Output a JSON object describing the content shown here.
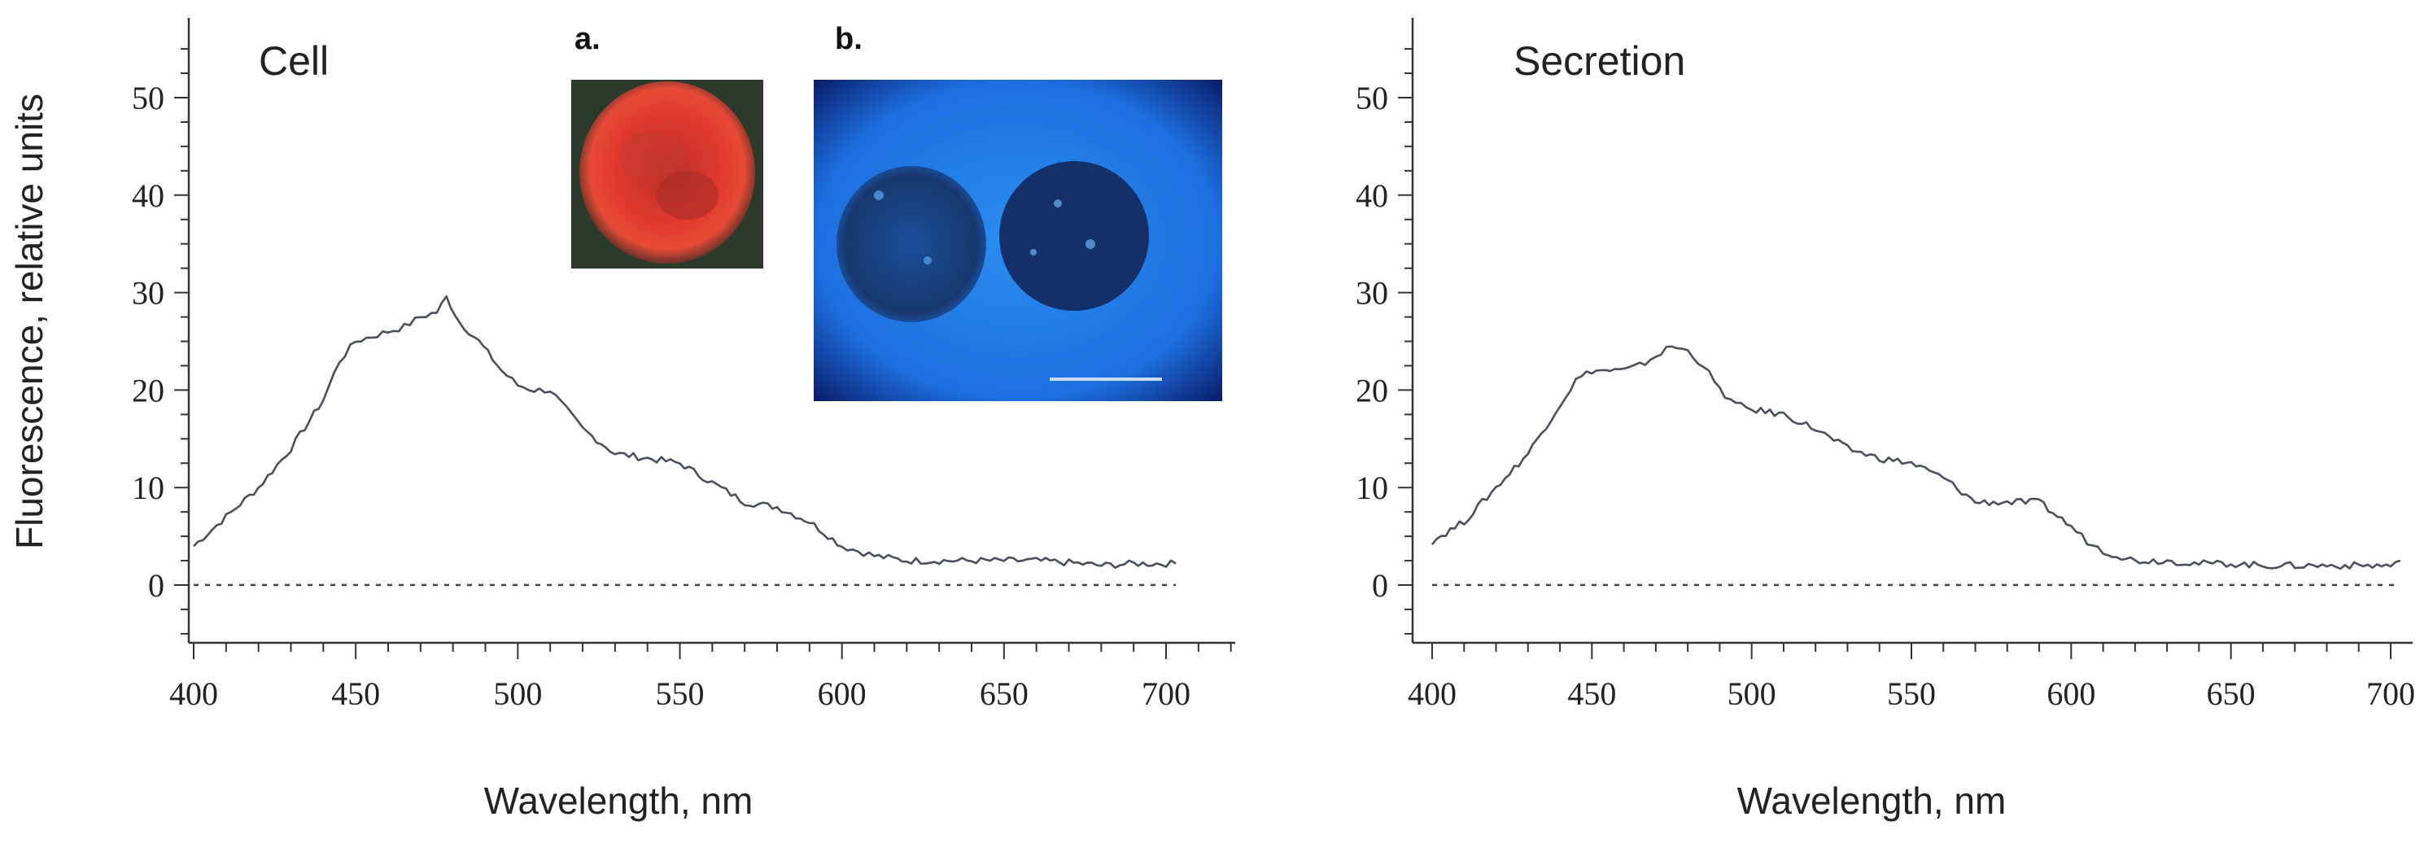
{
  "figure": {
    "ylabel": "Fluorescence, relative units",
    "inset_labels": {
      "a": "a.",
      "b": "b."
    }
  },
  "colors": {
    "line": "#4a4f5c",
    "inset_a": "#e43a2e",
    "inset_b": "#1e74e0"
  },
  "chart_data": [
    {
      "type": "line",
      "title": "Cell",
      "xlabel": "Wavelength, nm",
      "ylabel": "Fluorescence, relative units",
      "xlim": [
        397,
        720
      ],
      "ylim": [
        -6,
        58
      ],
      "xticks": [
        400,
        450,
        500,
        550,
        600,
        650,
        700
      ],
      "yticks": [
        0,
        10,
        20,
        30,
        40,
        50
      ],
      "zero_line": true,
      "series": [
        {
          "x": [
            400,
            410,
            420,
            430,
            440,
            445,
            450,
            455,
            460,
            465,
            470,
            475,
            478,
            482,
            488,
            495,
            500,
            505,
            510,
            515,
            520,
            530,
            540,
            550,
            560,
            570,
            580,
            590,
            600,
            605,
            610,
            620,
            630,
            640,
            650,
            660,
            670,
            680,
            690,
            700,
            703
          ],
          "y": [
            4,
            7,
            10,
            14,
            19,
            23,
            25,
            25.5,
            26,
            26.5,
            27.5,
            28,
            29.5,
            27,
            25,
            22,
            20.5,
            20,
            20,
            18,
            16,
            13.5,
            13,
            12.5,
            10.5,
            8.5,
            8,
            6.5,
            4,
            3.5,
            3,
            2.5,
            2.5,
            2.5,
            2.5,
            2.5,
            2.3,
            2,
            2.2,
            2.2,
            2.2
          ]
        }
      ]
    },
    {
      "type": "line",
      "title": "Secretion",
      "xlabel": "Wavelength, nm",
      "ylabel": "",
      "xlim": [
        397,
        705
      ],
      "ylim": [
        -6,
        58
      ],
      "xticks": [
        400,
        450,
        500,
        550,
        600,
        650,
        700
      ],
      "yticks": [
        0,
        10,
        20,
        30,
        40,
        50
      ],
      "zero_line": true,
      "series": [
        {
          "x": [
            400,
            410,
            420,
            430,
            440,
            445,
            450,
            460,
            465,
            470,
            475,
            480,
            485,
            490,
            495,
            500,
            510,
            520,
            530,
            540,
            550,
            560,
            570,
            580,
            590,
            600,
            605,
            610,
            620,
            630,
            640,
            650,
            660,
            670,
            680,
            690,
            700,
            703
          ],
          "y": [
            4.5,
            6.5,
            10,
            13.5,
            18.5,
            21,
            22,
            22,
            22.5,
            23.5,
            24.5,
            24,
            22.5,
            20,
            18.5,
            18,
            17.5,
            16,
            14,
            13,
            12.5,
            11,
            8.5,
            8.5,
            8.5,
            6,
            4.5,
            3.5,
            2.5,
            2.5,
            2.2,
            2.2,
            2,
            2,
            2,
            2,
            2,
            2.5
          ]
        }
      ]
    }
  ]
}
